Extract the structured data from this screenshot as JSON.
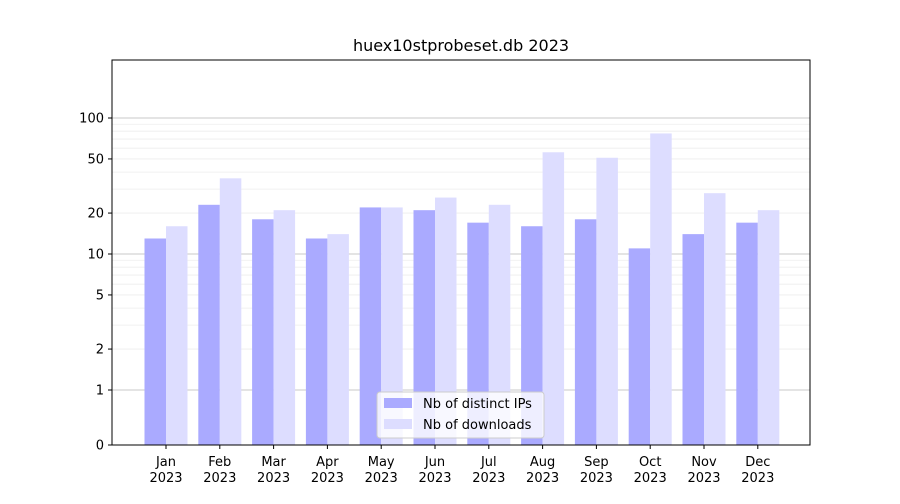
{
  "chart_data": {
    "type": "bar",
    "title": "huex10stprobeset.db 2023",
    "xlabel": "",
    "ylabel": "",
    "yscale": "symlog",
    "ylim": [
      0,
      120
    ],
    "grid": true,
    "legend_position": "bottom-center",
    "categories": [
      "Jan\n2023",
      "Feb\n2023",
      "Mar\n2023",
      "Apr\n2023",
      "May\n2023",
      "Jun\n2023",
      "Jul\n2023",
      "Aug\n2023",
      "Sep\n2023",
      "Oct\n2023",
      "Nov\n2023",
      "Dec\n2023"
    ],
    "yticks": [
      0,
      1,
      2,
      5,
      10,
      20,
      50,
      100
    ],
    "ytick_labels": [
      "0",
      "1",
      "2",
      "5",
      "10",
      "20",
      "50",
      "100"
    ],
    "series": [
      {
        "name": "Nb of distinct IPs",
        "color": "#aaaaff",
        "values": [
          13,
          23,
          18,
          13,
          22,
          21,
          17,
          16,
          18,
          11,
          14,
          17
        ]
      },
      {
        "name": "Nb of downloads",
        "color": "#ddddff",
        "values": [
          16,
          36,
          21,
          14,
          22,
          26,
          23,
          56,
          51,
          77,
          28,
          21
        ]
      }
    ]
  }
}
